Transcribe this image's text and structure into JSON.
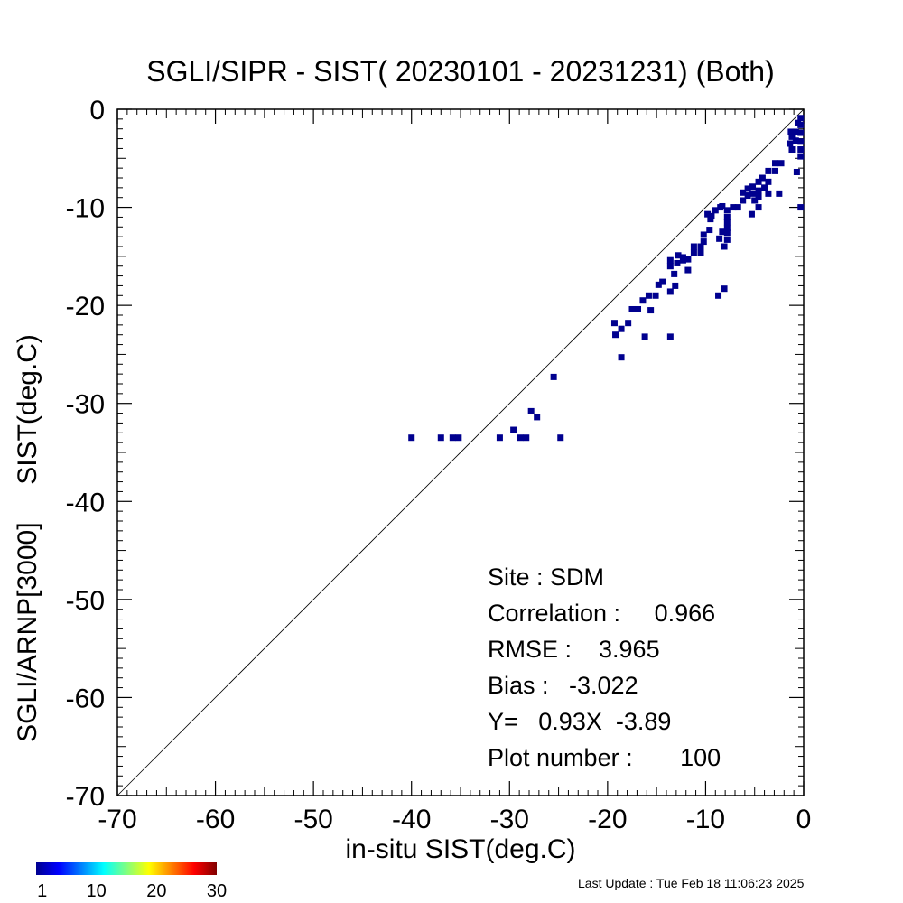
{
  "chart_data": {
    "type": "scatter",
    "title": "SGLI/SIPR - SIST( 20230101 - 20231231) (Both)",
    "xlabel": "in-situ SIST(deg.C)",
    "ylabel": "SGLI/ARNP[3000]     SIST(deg.C)",
    "xlim": [
      -70,
      0
    ],
    "ylim": [
      -70,
      0
    ],
    "xticks": [
      "-70",
      "-60",
      "-50",
      "-40",
      "-30",
      "-20",
      "-10",
      "0"
    ],
    "yticks": [
      "0",
      "-10",
      "-20",
      "-30",
      "-40",
      "-50",
      "-60",
      "-70"
    ],
    "one_to_one_line": true,
    "point_color": "#00008f",
    "points": [
      [
        -40.0,
        -33.5
      ],
      [
        -37.0,
        -33.5
      ],
      [
        -35.8,
        -33.5
      ],
      [
        -35.2,
        -33.5
      ],
      [
        -31.0,
        -33.5
      ],
      [
        -29.6,
        -32.7
      ],
      [
        -28.9,
        -33.5
      ],
      [
        -28.3,
        -33.5
      ],
      [
        -27.8,
        -30.8
      ],
      [
        -27.2,
        -31.4
      ],
      [
        -24.8,
        -33.5
      ],
      [
        -25.5,
        -27.3
      ],
      [
        -19.3,
        -21.8
      ],
      [
        -19.2,
        -23.0
      ],
      [
        -18.6,
        -25.3
      ],
      [
        -18.6,
        -22.4
      ],
      [
        -17.9,
        -21.8
      ],
      [
        -17.5,
        -20.4
      ],
      [
        -16.9,
        -20.4
      ],
      [
        -16.4,
        -19.5
      ],
      [
        -16.2,
        -23.2
      ],
      [
        -15.8,
        -19.0
      ],
      [
        -15.6,
        -20.5
      ],
      [
        -15.1,
        -19.0
      ],
      [
        -14.8,
        -17.9
      ],
      [
        -14.4,
        -17.6
      ],
      [
        -13.6,
        -18.6
      ],
      [
        -13.6,
        -23.2
      ],
      [
        -13.6,
        -16.0
      ],
      [
        -13.6,
        -15.4
      ],
      [
        -13.2,
        -16.8
      ],
      [
        -13.1,
        -18.0
      ],
      [
        -12.9,
        -15.7
      ],
      [
        -12.8,
        -14.9
      ],
      [
        -12.3,
        -15.4
      ],
      [
        -12.3,
        -15.1
      ],
      [
        -11.8,
        -15.3
      ],
      [
        -11.8,
        -16.4
      ],
      [
        -11.2,
        -14.0
      ],
      [
        -11.2,
        -14.6
      ],
      [
        -10.5,
        -14.6
      ],
      [
        -10.5,
        -14.0
      ],
      [
        -10.2,
        -13.5
      ],
      [
        -10.2,
        -12.8
      ],
      [
        -9.6,
        -12.3
      ],
      [
        -9.5,
        -11.2
      ],
      [
        -9.8,
        -10.7
      ],
      [
        -9.4,
        -10.9
      ],
      [
        -9.0,
        -10.3
      ],
      [
        -8.5,
        -10.0
      ],
      [
        -8.3,
        -9.9
      ],
      [
        -8.1,
        -14.0
      ],
      [
        -8.3,
        -12.5
      ],
      [
        -8.6,
        -13.2
      ],
      [
        -7.8,
        -10.3
      ],
      [
        -7.8,
        -11.0
      ],
      [
        -7.8,
        -11.5
      ],
      [
        -7.8,
        -12.1
      ],
      [
        -7.8,
        -12.6
      ],
      [
        -7.8,
        -13.3
      ],
      [
        -7.2,
        -10.0
      ],
      [
        -8.7,
        -19.0
      ],
      [
        -8.1,
        -18.3
      ],
      [
        -6.7,
        -10.0
      ],
      [
        -6.2,
        -9.3
      ],
      [
        -6.2,
        -8.5
      ],
      [
        -5.7,
        -8.1
      ],
      [
        -5.7,
        -8.8
      ],
      [
        -5.2,
        -7.9
      ],
      [
        -5.2,
        -8.6
      ],
      [
        -4.6,
        -8.3
      ],
      [
        -4.6,
        -8.9
      ],
      [
        -4.6,
        -10.0
      ],
      [
        -5.3,
        -10.7
      ],
      [
        -5.0,
        -9.3
      ],
      [
        -4.6,
        -7.4
      ],
      [
        -4.0,
        -8.0
      ],
      [
        -4.2,
        -7.0
      ],
      [
        -3.6,
        -6.3
      ],
      [
        -3.6,
        -7.4
      ],
      [
        -3.6,
        -8.6
      ],
      [
        -2.9,
        -6.3
      ],
      [
        -2.9,
        -5.5
      ],
      [
        -2.3,
        -5.5
      ],
      [
        -2.5,
        -8.6
      ],
      [
        -1.4,
        -3.5
      ],
      [
        -1.2,
        -4.1
      ],
      [
        -1.3,
        -2.3
      ],
      [
        -1.2,
        -2.8
      ],
      [
        -0.8,
        -2.3
      ],
      [
        -0.8,
        -3.2
      ],
      [
        -0.7,
        -6.4
      ],
      [
        -0.6,
        -1.4
      ],
      [
        -0.3,
        -0.9
      ],
      [
        -0.3,
        -1.6
      ],
      [
        -0.3,
        -2.4
      ],
      [
        -0.3,
        -3.3
      ],
      [
        -0.3,
        -4.1
      ],
      [
        -0.3,
        -4.8
      ],
      [
        -0.3,
        -10.0
      ]
    ],
    "stats": {
      "site": "Site : SDM",
      "correlation": "Correlation :     0.966",
      "rmse": "RMSE :    3.965",
      "bias": "Bias :   -3.022",
      "regression": "Y=   0.93X  -3.89",
      "plot_number": "Plot number :       100"
    },
    "colorbar": {
      "colors": [
        "#00008f",
        "#0000ff",
        "#0080ff",
        "#00ffff",
        "#80ff80",
        "#ffff00",
        "#ff8000",
        "#ff0000",
        "#800000"
      ],
      "ticks": [
        "1",
        "10",
        "20",
        "30"
      ],
      "tick_values": [
        1,
        10,
        20,
        30
      ],
      "range": [
        0,
        30
      ]
    },
    "last_update": "Last Update : Tue Feb 18 11:06:23 2025"
  }
}
